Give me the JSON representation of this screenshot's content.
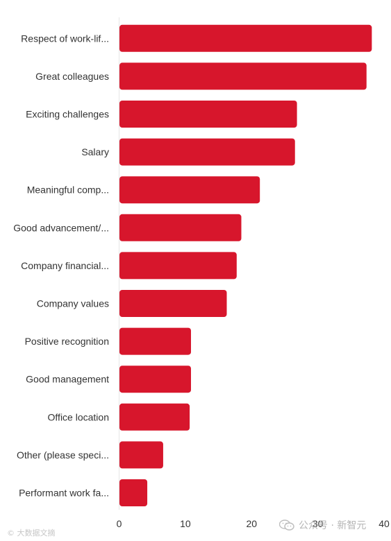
{
  "chart_data": {
    "type": "bar",
    "orientation": "horizontal",
    "categories": [
      "Respect of work-lif...",
      "Great colleagues",
      "Exciting challenges",
      "Salary",
      "Meaningful comp...",
      "Good advancement/...",
      "Company financial...",
      "Company values",
      "Positive recognition",
      "Good management",
      "Office location",
      "Other (please speci...",
      "Performant work fa..."
    ],
    "values": [
      38.1,
      37.3,
      26.8,
      26.5,
      21.2,
      18.4,
      17.7,
      16.2,
      10.8,
      10.8,
      10.6,
      6.6,
      4.2
    ],
    "xlim": [
      0,
      40
    ],
    "xticks": [
      "0",
      "10",
      "20",
      "30",
      "40"
    ],
    "title": "",
    "xlabel": "",
    "ylabel": "",
    "bar_color": "#d7162c",
    "grid": false
  },
  "watermarks": {
    "left": "© 大数据文摘",
    "right": "公众号 · 新智元",
    "right_icon": "wechat-icon"
  }
}
